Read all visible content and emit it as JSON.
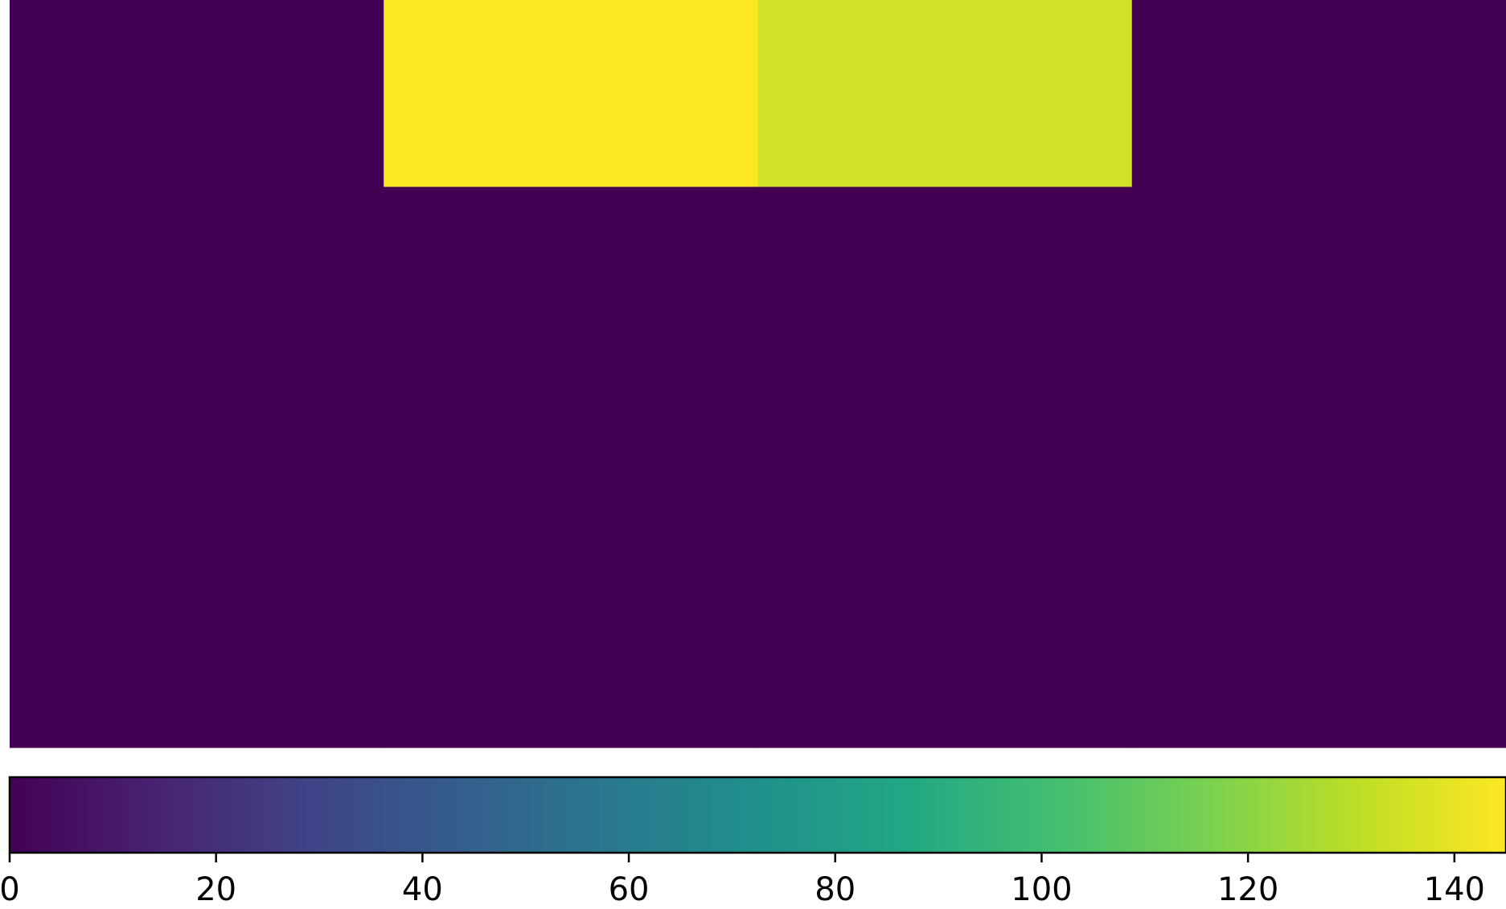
{
  "chart_data": {
    "type": "heatmap",
    "rows": 4,
    "cols": 4,
    "values": [
      [
        0,
        145,
        135,
        0
      ],
      [
        0,
        0,
        0,
        0
      ],
      [
        0,
        0,
        0,
        0
      ],
      [
        0,
        0,
        0,
        0
      ]
    ],
    "colormap": "viridis",
    "colorbar": {
      "orientation": "horizontal",
      "position": "bottom",
      "range": [
        0,
        145
      ],
      "ticks": [
        0,
        20,
        40,
        60,
        80,
        100,
        120,
        140
      ],
      "tick_labels": [
        "0",
        "20",
        "40",
        "60",
        "80",
        "100",
        "120",
        "140"
      ]
    },
    "title": "",
    "xlabel": "",
    "ylabel": ""
  }
}
